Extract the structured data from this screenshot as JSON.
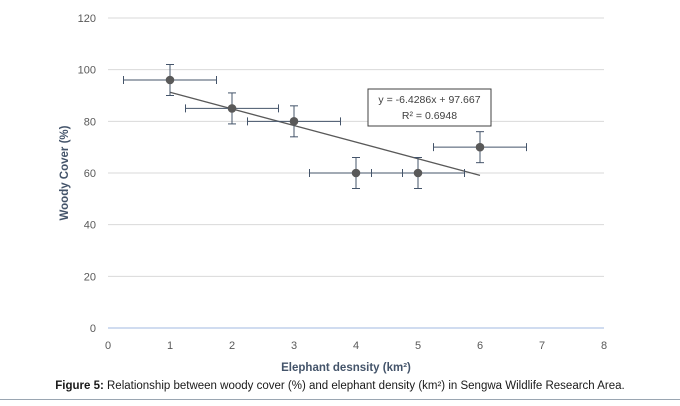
{
  "chart_data": {
    "type": "scatter",
    "xlabel": "Elephant desnsity (km²)",
    "ylabel": "Woody Cover (%)",
    "xlim": [
      0,
      8
    ],
    "ylim": [
      0,
      120
    ],
    "x_ticks": [
      "0",
      "1",
      "2",
      "3",
      "4",
      "5",
      "6",
      "7",
      "8"
    ],
    "y_ticks": [
      "0",
      "20",
      "40",
      "60",
      "80",
      "100",
      "120"
    ],
    "grid": "horizontal",
    "colors": {
      "points": "#595959",
      "trendline": "#595959",
      "errorbars": "#44546a",
      "grid": "#d9d9d9",
      "axis_labels": "#44546a"
    },
    "points": [
      {
        "x": 1,
        "y": 96,
        "xerr": 0.75,
        "yerr": 6
      },
      {
        "x": 2,
        "y": 85,
        "xerr": 0.75,
        "yerr": 6
      },
      {
        "x": 3,
        "y": 80,
        "xerr": 0.75,
        "yerr": 6
      },
      {
        "x": 4,
        "y": 60,
        "xerr": 0.75,
        "yerr": 6
      },
      {
        "x": 5,
        "y": 60,
        "xerr": 0.75,
        "yerr": 6
      },
      {
        "x": 6,
        "y": 70,
        "xerr": 0.75,
        "yerr": 6
      }
    ],
    "trendline": {
      "slope": -6.4286,
      "intercept": 97.667,
      "x_range": [
        1,
        6
      ],
      "equation": "y = -6.4286x + 97.667",
      "r2": "R² = 0.6948"
    }
  },
  "caption": {
    "label": "Figure 5:",
    "text": " Relationship between woody cover (%) and elephant density (km²) in Sengwa Wildlife Research Area."
  }
}
